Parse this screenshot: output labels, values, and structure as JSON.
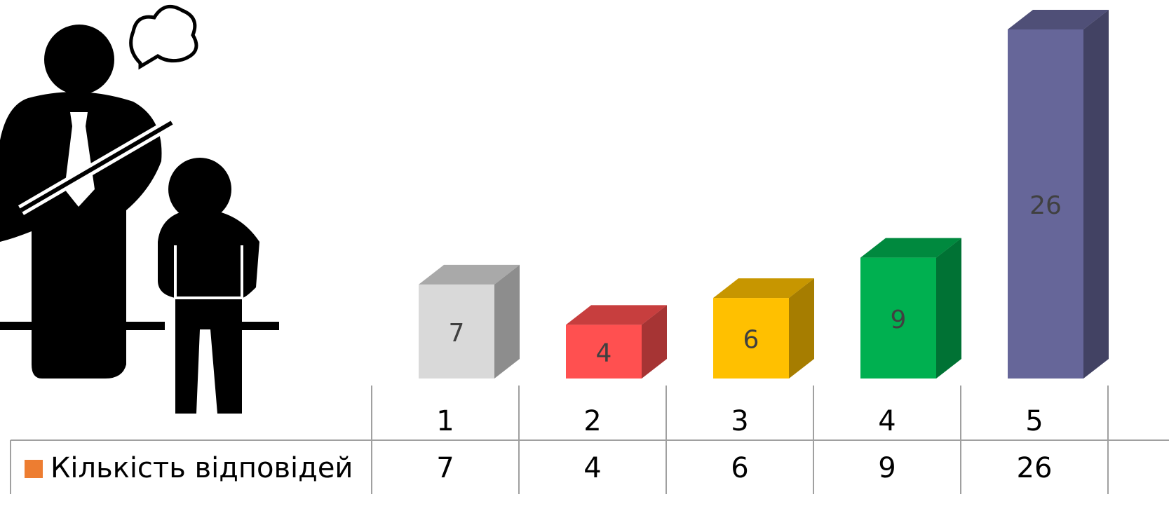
{
  "chart_data": {
    "type": "bar3d",
    "categories": [
      "1",
      "2",
      "3",
      "4",
      "5"
    ],
    "series": [
      {
        "name": "Кількість відповідей",
        "color": "#ed7d31",
        "colors": [
          "#d9d9d9",
          "#ff5050",
          "#ffc000",
          "#00b050",
          "#666699"
        ],
        "values": [
          7,
          4,
          6,
          9,
          26
        ]
      }
    ]
  }
}
